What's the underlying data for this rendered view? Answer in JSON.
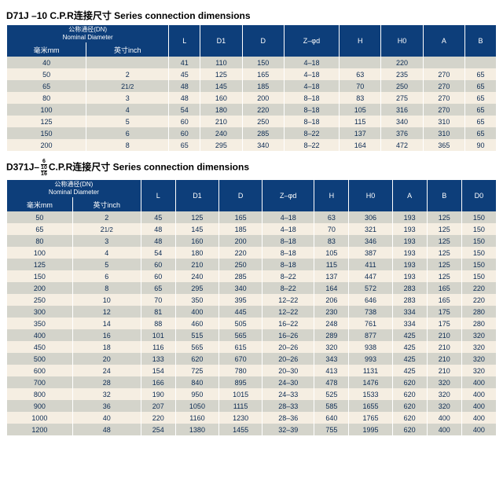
{
  "table1": {
    "title": "D71J –10 C.P.R连接尺寸 Series connection dimensions",
    "header": {
      "dn_cn": "公称通径(DN)",
      "dn_en": "Nominal Diameter",
      "mm": "毫米mm",
      "inch": "英寸inch",
      "cols": [
        "L",
        "D1",
        "D",
        "Z–φd",
        "H",
        "H0",
        "A",
        "B"
      ]
    },
    "rows": [
      [
        "40",
        "",
        "41",
        "110",
        "150",
        "4–18",
        "",
        "220",
        "",
        ""
      ],
      [
        "50",
        "2",
        "45",
        "125",
        "165",
        "4–18",
        "63",
        "235",
        "270",
        "65"
      ],
      [
        "65",
        "2_1/2",
        "48",
        "145",
        "185",
        "4–18",
        "70",
        "250",
        "270",
        "65"
      ],
      [
        "80",
        "3",
        "48",
        "160",
        "200",
        "8–18",
        "83",
        "275",
        "270",
        "65"
      ],
      [
        "100",
        "4",
        "54",
        "180",
        "220",
        "8–18",
        "105",
        "316",
        "270",
        "65"
      ],
      [
        "125",
        "5",
        "60",
        "210",
        "250",
        "8–18",
        "115",
        "340",
        "310",
        "65"
      ],
      [
        "150",
        "6",
        "60",
        "240",
        "285",
        "8–22",
        "137",
        "376",
        "310",
        "65"
      ],
      [
        "200",
        "8",
        "65",
        "295",
        "340",
        "8–22",
        "164",
        "472",
        "365",
        "90"
      ]
    ]
  },
  "table2": {
    "title_prefix": "D371J–",
    "title_frac_top": "6",
    "title_frac_mid": "10",
    "title_frac_bot": "16",
    "title_suffix": "C.P.R连接尺寸 Series connection dimensions",
    "header": {
      "dn_cn": "公称通径(DN)",
      "dn_en": "Nominal Diameter",
      "mm": "毫米mm",
      "inch": "英寸inch",
      "cols": [
        "L",
        "D1",
        "D",
        "Z–φd",
        "H",
        "H0",
        "A",
        "B",
        "D0"
      ]
    },
    "rows": [
      [
        "50",
        "2",
        "45",
        "125",
        "165",
        "4–18",
        "63",
        "306",
        "193",
        "125",
        "150"
      ],
      [
        "65",
        "2_1/2",
        "48",
        "145",
        "185",
        "4–18",
        "70",
        "321",
        "193",
        "125",
        "150"
      ],
      [
        "80",
        "3",
        "48",
        "160",
        "200",
        "8–18",
        "83",
        "346",
        "193",
        "125",
        "150"
      ],
      [
        "100",
        "4",
        "54",
        "180",
        "220",
        "8–18",
        "105",
        "387",
        "193",
        "125",
        "150"
      ],
      [
        "125",
        "5",
        "60",
        "210",
        "250",
        "8–18",
        "115",
        "411",
        "193",
        "125",
        "150"
      ],
      [
        "150",
        "6",
        "60",
        "240",
        "285",
        "8–22",
        "137",
        "447",
        "193",
        "125",
        "150"
      ],
      [
        "200",
        "8",
        "65",
        "295",
        "340",
        "8–22",
        "164",
        "572",
        "283",
        "165",
        "220"
      ],
      [
        "250",
        "10",
        "70",
        "350",
        "395",
        "12–22",
        "206",
        "646",
        "283",
        "165",
        "220"
      ],
      [
        "300",
        "12",
        "81",
        "400",
        "445",
        "12–22",
        "230",
        "738",
        "334",
        "175",
        "280"
      ],
      [
        "350",
        "14",
        "88",
        "460",
        "505",
        "16–22",
        "248",
        "761",
        "334",
        "175",
        "280"
      ],
      [
        "400",
        "16",
        "101",
        "515",
        "565",
        "16–26",
        "289",
        "877",
        "425",
        "210",
        "320"
      ],
      [
        "450",
        "18",
        "116",
        "565",
        "615",
        "20–26",
        "320",
        "938",
        "425",
        "210",
        "320"
      ],
      [
        "500",
        "20",
        "133",
        "620",
        "670",
        "20–26",
        "343",
        "993",
        "425",
        "210",
        "320"
      ],
      [
        "600",
        "24",
        "154",
        "725",
        "780",
        "20–30",
        "413",
        "1131",
        "425",
        "210",
        "320"
      ],
      [
        "700",
        "28",
        "166",
        "840",
        "895",
        "24–30",
        "478",
        "1476",
        "620",
        "320",
        "400"
      ],
      [
        "800",
        "32",
        "190",
        "950",
        "1015",
        "24–33",
        "525",
        "1533",
        "620",
        "320",
        "400"
      ],
      [
        "900",
        "36",
        "207",
        "1050",
        "1115",
        "28–33",
        "585",
        "1655",
        "620",
        "320",
        "400"
      ],
      [
        "1000",
        "40",
        "220",
        "1160",
        "1230",
        "28–36",
        "640",
        "1765",
        "620",
        "400",
        "400"
      ],
      [
        "1200",
        "48",
        "254",
        "1380",
        "1455",
        "32–39",
        "755",
        "1995",
        "620",
        "400",
        "400"
      ]
    ]
  },
  "colors": {
    "header_bg": "#0d3e7a",
    "row_odd": "#d4d4cb",
    "row_even": "#f5eee2",
    "text": "#0b2a52"
  }
}
